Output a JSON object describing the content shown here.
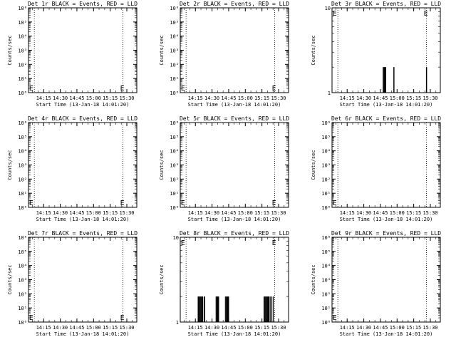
{
  "chart_data": [
    {
      "type": "line",
      "title": "Det 1r BLACK = Events, RED = LLD",
      "xlabel": "Start Time (13-Jan-18 14:01:20)",
      "ylabel": "Counts/sec",
      "yscale": "log",
      "ylim": [
        1,
        1000000
      ],
      "yticks": [
        "10⁰",
        "10¹",
        "10²",
        "10³",
        "10⁴",
        "10⁵",
        "10⁶"
      ],
      "xticks": [
        "14:15",
        "14:30",
        "14:45",
        "15:00",
        "15:15",
        "15:30"
      ],
      "xtick_min": [
        14.25,
        14.5,
        14.75,
        15.0,
        15.25,
        15.5
      ],
      "events_x": [],
      "events_y": [],
      "markers": [
        "E",
        "E"
      ]
    },
    {
      "type": "line",
      "title": "Det 2r BLACK = Events, RED = LLD",
      "xlabel": "Start Time (13-Jan-18 14:01:20)",
      "ylabel": "Counts/sec",
      "yscale": "log",
      "ylim": [
        1,
        1000000
      ],
      "yticks": [
        "10⁰",
        "10¹",
        "10²",
        "10³",
        "10⁴",
        "10⁵",
        "10⁶"
      ],
      "xticks": [
        "14:15",
        "14:30",
        "14:45",
        "15:00",
        "15:15",
        "15:30"
      ],
      "xtick_min": [
        14.25,
        14.5,
        14.75,
        15.0,
        15.25,
        15.5
      ],
      "events_x": [],
      "events_y": [],
      "markers": [
        "E",
        "E"
      ]
    },
    {
      "type": "line",
      "title": "Det 3r BLACK = Events, RED = LLD",
      "xlabel": "Start Time (13-Jan-18 14:01:20)",
      "ylabel": "Counts/sec",
      "yscale": "log",
      "ylim": [
        1,
        10
      ],
      "yticks": [
        "1",
        "10"
      ],
      "xticks": [
        "14:15",
        "14:30",
        "14:45",
        "15:00",
        "15:15",
        "15:30"
      ],
      "xtick_min": [
        14.25,
        14.5,
        14.75,
        15.0,
        15.25,
        15.5
      ],
      "events_x": [
        14.79,
        14.8,
        14.81,
        14.815,
        14.82,
        14.83,
        14.95,
        14.955,
        15.44,
        15.445
      ],
      "events_y": [
        2,
        2,
        2,
        2,
        2,
        2,
        2,
        2,
        2,
        2
      ],
      "markers": [
        "E",
        "E"
      ]
    },
    {
      "type": "line",
      "title": "Det 4r BLACK = Events, RED = LLD",
      "xlabel": "Start Time (13-Jan-18 14:01:20)",
      "ylabel": "Counts/sec",
      "yscale": "log",
      "ylim": [
        1,
        1000000
      ],
      "yticks": [
        "10⁰",
        "10¹",
        "10²",
        "10³",
        "10⁴",
        "10⁵",
        "10⁶"
      ],
      "xticks": [
        "14:15",
        "14:30",
        "14:45",
        "15:00",
        "15:15",
        "15:30"
      ],
      "xtick_min": [
        14.25,
        14.5,
        14.75,
        15.0,
        15.25,
        15.5
      ],
      "events_x": [],
      "events_y": [],
      "markers": [
        "E",
        "E"
      ]
    },
    {
      "type": "line",
      "title": "Det 5r BLACK = Events, RED = LLD",
      "xlabel": "Start Time (13-Jan-18 14:01:20)",
      "ylabel": "Counts/sec",
      "yscale": "log",
      "ylim": [
        1,
        1000000
      ],
      "yticks": [
        "10⁰",
        "10¹",
        "10²",
        "10³",
        "10⁴",
        "10⁵",
        "10⁶"
      ],
      "xticks": [
        "14:15",
        "14:30",
        "14:45",
        "15:00",
        "15:15",
        "15:30"
      ],
      "xtick_min": [
        14.25,
        14.5,
        14.75,
        15.0,
        15.25,
        15.5
      ],
      "events_x": [],
      "events_y": [],
      "markers": [
        "E",
        "E"
      ]
    },
    {
      "type": "line",
      "title": "Det 6r BLACK = Events, RED = LLD",
      "xlabel": "Start Time (13-Jan-18 14:01:20)",
      "ylabel": "Counts/sec",
      "yscale": "log",
      "ylim": [
        1,
        1000000
      ],
      "yticks": [
        "10⁰",
        "10¹",
        "10²",
        "10³",
        "10⁴",
        "10⁵",
        "10⁶"
      ],
      "xticks": [
        "14:15",
        "14:30",
        "14:45",
        "15:00",
        "15:15",
        "15:30"
      ],
      "xtick_min": [
        14.25,
        14.5,
        14.75,
        15.0,
        15.25,
        15.5
      ],
      "events_x": [],
      "events_y": [],
      "markers": [
        "E"
      ]
    },
    {
      "type": "line",
      "title": "Det 7r BLACK = Events, RED = LLD",
      "xlabel": "Start Time (13-Jan-18 14:01:20)",
      "ylabel": "Counts/sec",
      "yscale": "log",
      "ylim": [
        1,
        1000000
      ],
      "yticks": [
        "10⁰",
        "10¹",
        "10²",
        "10³",
        "10⁴",
        "10⁵",
        "10⁶"
      ],
      "xticks": [
        "14:15",
        "14:30",
        "14:45",
        "15:00",
        "15:15",
        "15:30"
      ],
      "xtick_min": [
        14.25,
        14.5,
        14.75,
        15.0,
        15.25,
        15.5
      ],
      "events_x": [],
      "events_y": [],
      "markers": [
        "E",
        "E"
      ]
    },
    {
      "type": "line",
      "title": "Det 8r BLACK = Events, RED = LLD",
      "xlabel": "Start Time (13-Jan-18 14:01:20)",
      "ylabel": "Counts/sec",
      "yscale": "log",
      "ylim": [
        1,
        10
      ],
      "yticks": [
        "1",
        "10"
      ],
      "xticks": [
        "14:15",
        "14:30",
        "14:45",
        "15:00",
        "15:15",
        "15:30"
      ],
      "xtick_min": [
        14.25,
        14.5,
        14.75,
        15.0,
        15.25,
        15.5
      ],
      "events_x": [
        14.29,
        14.3,
        14.31,
        14.32,
        14.33,
        14.34,
        14.35,
        14.36,
        14.38,
        14.39,
        14.56,
        14.57,
        14.58,
        14.59,
        14.6,
        14.7,
        14.71,
        14.72,
        14.73,
        14.74,
        14.75,
        15.28,
        15.29,
        15.3,
        15.31,
        15.32,
        15.33,
        15.34,
        15.35,
        15.36,
        15.38,
        15.4,
        15.42
      ],
      "events_y": [
        2,
        2,
        2,
        2,
        2,
        2,
        2,
        2,
        2,
        2,
        2,
        2,
        2,
        2,
        2,
        2,
        2,
        2,
        2,
        2,
        2,
        2,
        2,
        2,
        2,
        2,
        2,
        2,
        2,
        2,
        2,
        2,
        2
      ],
      "markers": [
        "E",
        "E"
      ]
    },
    {
      "type": "line",
      "title": "Det 9r BLACK = Events, RED = LLD",
      "xlabel": "Start Time (13-Jan-18 14:01:20)",
      "ylabel": "Counts/sec",
      "yscale": "log",
      "ylim": [
        1,
        1000000
      ],
      "yticks": [
        "10⁰",
        "10¹",
        "10²",
        "10³",
        "10⁴",
        "10⁵",
        "10⁶"
      ],
      "xticks": [
        "14:15",
        "14:30",
        "14:45",
        "15:00",
        "15:15",
        "15:30"
      ],
      "xtick_min": [
        14.25,
        14.5,
        14.75,
        15.0,
        15.25,
        15.5
      ],
      "events_x": [],
      "events_y": [],
      "markers": [
        "E"
      ]
    }
  ]
}
